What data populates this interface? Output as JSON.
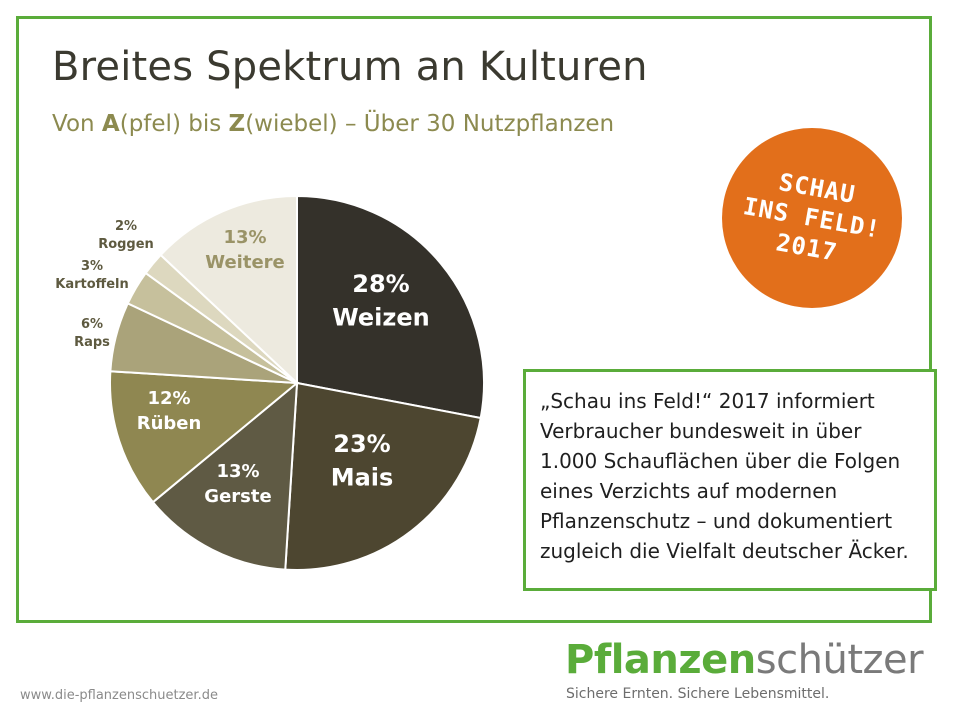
{
  "header": {
    "title": "Breites Spektrum an Kulturen",
    "subtitle_prefix": "Von ",
    "subtitle_a": "A",
    "subtitle_a_rest": "(pfel) bis ",
    "subtitle_z": "Z",
    "subtitle_rest": "(wiebel) – Über 30 Nutzpflanzen"
  },
  "badge": {
    "line1": "SCHAU",
    "line2": "INS FELD!",
    "line3": "2017",
    "color": "#e26f1b"
  },
  "info_text": "„Schau ins Feld!“ 2017 informiert Verbraucher bundesweit in über 1.000 Schauflächen über die Folgen eines Verzichts auf modernen Pflanzenschutz – und dokumentiert zugleich die Vielfalt deutscher Äcker.",
  "footer": {
    "url": "www.die-pflanzenschuetzer.de",
    "logo_part1": "Pflanzen",
    "logo_part2": "schützer",
    "tagline": "Sichere Ernten. Sichere Lebensmittel."
  },
  "colors": {
    "frame": "#5aac3a",
    "title": "#3b3a30",
    "subtitle": "#8c8a4f"
  },
  "chart_data": {
    "type": "pie",
    "title": "",
    "start": "12 o'clock",
    "direction": "clockwise",
    "slices": [
      {
        "label": "Weizen",
        "value": 28,
        "value_label": "28%",
        "color": "#34312a",
        "text_color": "#ffffff"
      },
      {
        "label": "Mais",
        "value": 23,
        "value_label": "23%",
        "color": "#4d4630",
        "text_color": "#ffffff"
      },
      {
        "label": "Gerste",
        "value": 13,
        "value_label": "13%",
        "color": "#5f5a44",
        "text_color": "#ffffff"
      },
      {
        "label": "Rüben",
        "value": 12,
        "value_label": "12%",
        "color": "#8f8751",
        "text_color": "#ffffff"
      },
      {
        "label": "Raps",
        "value": 6,
        "value_label": "6%",
        "color": "#aaa37a",
        "text_color": "#5e5a40"
      },
      {
        "label": "Kartoffeln",
        "value": 3,
        "value_label": "3%",
        "color": "#c6c09c",
        "text_color": "#5e5a40"
      },
      {
        "label": "Roggen",
        "value": 2,
        "value_label": "2%",
        "color": "#ddd8bf",
        "text_color": "#5e5a40"
      },
      {
        "label": "Weitere",
        "value": 13,
        "value_label": "13%",
        "color": "#edeadf",
        "text_color": "#9a9367"
      }
    ]
  }
}
